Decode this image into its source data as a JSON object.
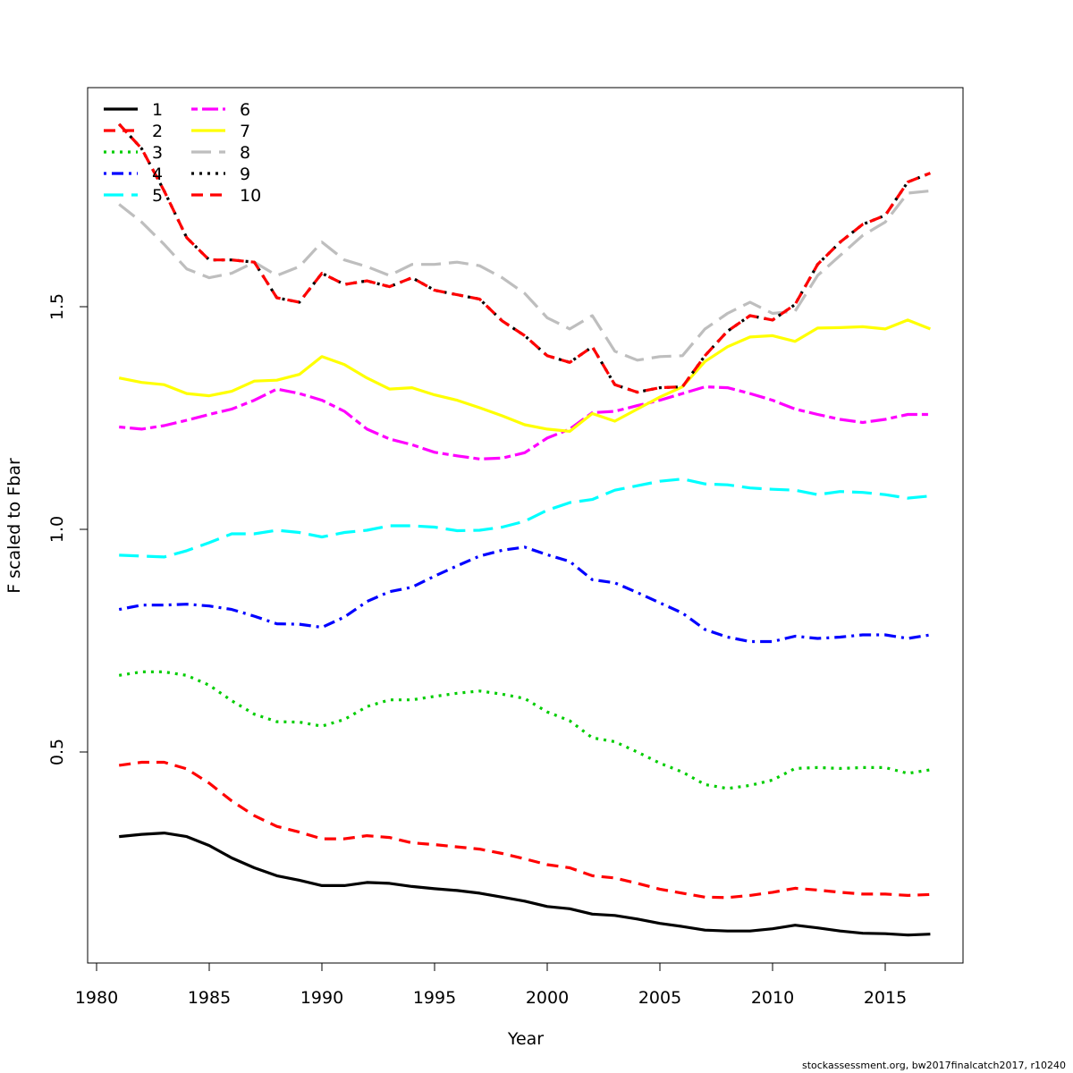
{
  "chart_data": {
    "type": "line",
    "xlabel": "Year",
    "ylabel": "F scaled to Fbar",
    "xlim": [
      1980,
      2018
    ],
    "ylim": [
      0.03,
      2.0
    ],
    "x_ticks": [
      1980,
      1985,
      1990,
      1995,
      2000,
      2005,
      2010,
      2015
    ],
    "y_ticks": [
      0.5,
      1.0,
      1.5
    ],
    "y_tick_labels": [
      "0.5",
      "1.0",
      "1.5"
    ],
    "grid": false,
    "legend_position": "top-left",
    "x": [
      1981,
      1982,
      1983,
      1984,
      1985,
      1986,
      1987,
      1988,
      1989,
      1990,
      1991,
      1992,
      1993,
      1994,
      1995,
      1996,
      1997,
      1998,
      1999,
      2000,
      2001,
      2002,
      2003,
      2004,
      2005,
      2006,
      2007,
      2008,
      2009,
      2010,
      2011,
      2012,
      2013,
      2014,
      2015,
      2016,
      2017
    ],
    "series": [
      {
        "name": "1",
        "color": "#000000",
        "dash": "solid",
        "values": [
          0.31,
          0.315,
          0.318,
          0.31,
          0.29,
          0.262,
          0.24,
          0.222,
          0.212,
          0.2,
          0.2,
          0.207,
          0.205,
          0.198,
          0.193,
          0.189,
          0.183,
          0.174,
          0.165,
          0.153,
          0.148,
          0.136,
          0.133,
          0.125,
          0.115,
          0.108,
          0.1,
          0.098,
          0.098,
          0.103,
          0.111,
          0.105,
          0.098,
          0.093,
          0.092,
          0.089,
          0.091
        ]
      },
      {
        "name": "2",
        "color": "#ff0000",
        "dash": "dashed",
        "values": [
          0.47,
          0.477,
          0.477,
          0.462,
          0.43,
          0.39,
          0.357,
          0.333,
          0.32,
          0.305,
          0.305,
          0.312,
          0.308,
          0.296,
          0.292,
          0.287,
          0.282,
          0.272,
          0.26,
          0.247,
          0.24,
          0.222,
          0.217,
          0.205,
          0.192,
          0.183,
          0.174,
          0.173,
          0.178,
          0.185,
          0.194,
          0.19,
          0.185,
          0.181,
          0.181,
          0.178,
          0.18
        ]
      },
      {
        "name": "3",
        "color": "#00cd00",
        "dash": "dotted",
        "values": [
          0.672,
          0.68,
          0.68,
          0.672,
          0.65,
          0.615,
          0.585,
          0.568,
          0.567,
          0.558,
          0.573,
          0.602,
          0.617,
          0.617,
          0.625,
          0.632,
          0.637,
          0.63,
          0.62,
          0.59,
          0.57,
          0.532,
          0.523,
          0.5,
          0.475,
          0.455,
          0.427,
          0.418,
          0.425,
          0.437,
          0.463,
          0.465,
          0.463,
          0.465,
          0.465,
          0.452,
          0.46
        ]
      },
      {
        "name": "4",
        "color": "#0000ff",
        "dash": "dashdot",
        "values": [
          0.82,
          0.83,
          0.83,
          0.832,
          0.828,
          0.82,
          0.805,
          0.788,
          0.787,
          0.78,
          0.803,
          0.838,
          0.86,
          0.87,
          0.895,
          0.918,
          0.94,
          0.953,
          0.96,
          0.943,
          0.928,
          0.887,
          0.88,
          0.858,
          0.835,
          0.812,
          0.775,
          0.758,
          0.748,
          0.748,
          0.76,
          0.755,
          0.758,
          0.763,
          0.763,
          0.755,
          0.763
        ]
      },
      {
        "name": "5",
        "color": "#00ffff",
        "dash": "longdash",
        "values": [
          0.942,
          0.94,
          0.938,
          0.952,
          0.97,
          0.99,
          0.99,
          0.998,
          0.993,
          0.983,
          0.993,
          0.998,
          1.008,
          1.008,
          1.005,
          0.997,
          0.998,
          1.005,
          1.018,
          1.043,
          1.06,
          1.067,
          1.088,
          1.098,
          1.108,
          1.113,
          1.102,
          1.1,
          1.093,
          1.09,
          1.088,
          1.078,
          1.085,
          1.083,
          1.078,
          1.07,
          1.075
        ]
      },
      {
        "name": "6",
        "color": "#ff00ff",
        "dash": "twodash",
        "values": [
          1.23,
          1.225,
          1.233,
          1.245,
          1.258,
          1.27,
          1.29,
          1.315,
          1.305,
          1.29,
          1.265,
          1.225,
          1.203,
          1.19,
          1.173,
          1.165,
          1.158,
          1.16,
          1.172,
          1.205,
          1.225,
          1.262,
          1.265,
          1.278,
          1.29,
          1.305,
          1.32,
          1.318,
          1.305,
          1.29,
          1.27,
          1.258,
          1.247,
          1.24,
          1.247,
          1.258,
          1.258
        ]
      },
      {
        "name": "7",
        "color": "#ffff00",
        "dash": "solid",
        "values": [
          1.34,
          1.33,
          1.325,
          1.305,
          1.3,
          1.31,
          1.333,
          1.335,
          1.348,
          1.388,
          1.37,
          1.34,
          1.315,
          1.318,
          1.302,
          1.29,
          1.273,
          1.255,
          1.235,
          1.225,
          1.22,
          1.26,
          1.243,
          1.27,
          1.297,
          1.32,
          1.377,
          1.41,
          1.432,
          1.435,
          1.422,
          1.452,
          1.453,
          1.455,
          1.45,
          1.47,
          1.45
        ]
      },
      {
        "name": "8",
        "color": "#bebebe",
        "dash": "longdash",
        "values": [
          1.73,
          1.69,
          1.64,
          1.585,
          1.565,
          1.575,
          1.6,
          1.57,
          1.59,
          1.645,
          1.605,
          1.59,
          1.57,
          1.595,
          1.595,
          1.6,
          1.592,
          1.565,
          1.53,
          1.475,
          1.45,
          1.48,
          1.4,
          1.38,
          1.388,
          1.39,
          1.45,
          1.485,
          1.51,
          1.485,
          1.49,
          1.57,
          1.615,
          1.66,
          1.69,
          1.755,
          1.76
        ]
      },
      {
        "name": "9",
        "color": "#000000",
        "dash": "dotted",
        "values": [
          1.91,
          1.855,
          1.76,
          1.655,
          1.605,
          1.605,
          1.6,
          1.52,
          1.51,
          1.575,
          1.55,
          1.558,
          1.545,
          1.565,
          1.537,
          1.527,
          1.517,
          1.468,
          1.435,
          1.39,
          1.375,
          1.41,
          1.325,
          1.308,
          1.318,
          1.32,
          1.39,
          1.445,
          1.48,
          1.47,
          1.505,
          1.595,
          1.645,
          1.685,
          1.705,
          1.78,
          1.8
        ]
      },
      {
        "name": "10",
        "color": "#ff0000",
        "dash": "dashed",
        "values": [
          1.91,
          1.855,
          1.76,
          1.655,
          1.605,
          1.605,
          1.6,
          1.52,
          1.51,
          1.575,
          1.55,
          1.558,
          1.545,
          1.565,
          1.537,
          1.527,
          1.517,
          1.468,
          1.435,
          1.39,
          1.375,
          1.41,
          1.325,
          1.308,
          1.318,
          1.32,
          1.39,
          1.445,
          1.48,
          1.47,
          1.505,
          1.595,
          1.645,
          1.685,
          1.705,
          1.78,
          1.8
        ]
      }
    ]
  },
  "footer": "stockassessment.org, bw2017finalcatch2017, r10240"
}
